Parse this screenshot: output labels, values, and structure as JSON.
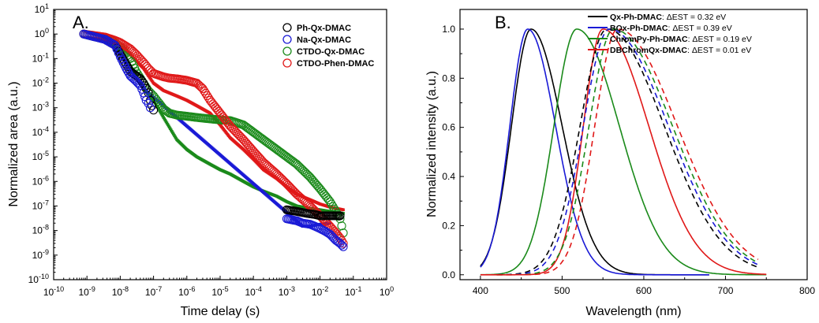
{
  "chart_data": [
    {
      "type": "scatter",
      "panel_label": "A.",
      "xlabel": "Time delay (s)",
      "ylabel": "Normalized area (a.u.)",
      "xscale": "log",
      "yscale": "log",
      "xlim": [
        1e-10,
        1
      ],
      "ylim": [
        1e-10,
        10
      ],
      "x_tick_labels": [
        "10-10",
        "10-9",
        "10-8",
        "10-7",
        "10-6",
        "10-5",
        "10-4",
        "10-3",
        "10-2",
        "10-1",
        "100"
      ],
      "y_tick_labels": [
        "10-10",
        "10-9",
        "10-8",
        "10-7",
        "10-6",
        "10-5",
        "10-4",
        "10-3",
        "10-2",
        "10-1",
        "100",
        "101"
      ],
      "legend_position": "top-right",
      "series": [
        {
          "name": "Ph-Qx-DMAC",
          "color": "#000000",
          "marker": "open-circle",
          "prompt": {
            "x": [
              8e-10,
              3.5e-09,
              7e-09,
              1e-08,
              1.5e-08,
              2e-08,
              3e-08,
              4e-08,
              5e-08,
              6e-08,
              7e-08,
              8e-08,
              9e-08,
              1e-07
            ],
            "y": [
              1,
              0.6,
              0.35,
              0.15,
              0.06,
              0.03,
              0.02,
              0.015,
              0.01,
              0.006,
              0.004,
              0.002,
              0.0012,
              0.0008
            ]
          },
          "delayed": {
            "x": [
              0.001,
              0.002,
              0.004,
              0.007,
              0.01,
              0.02,
              0.03,
              0.04
            ],
            "y": [
              7e-08,
              6e-08,
              5e-08,
              4.5e-08,
              4e-08,
              4e-08,
              4e-08,
              4e-08
            ]
          }
        },
        {
          "name": "Na-Qx-DMAC",
          "color": "#1a1ad6",
          "marker": "open-circle",
          "prompt": {
            "x": [
              8e-10,
              3.5e-09,
              7e-09,
              1e-08,
              1.5e-08,
              2e-08,
              3e-08,
              4e-08,
              5e-08,
              6e-08,
              7e-08,
              8e-08
            ],
            "y": [
              1,
              0.6,
              0.35,
              0.12,
              0.04,
              0.02,
              0.012,
              0.008,
              0.004,
              0.002,
              0.0015,
              0.001
            ]
          },
          "delayed": {
            "x": [
              0.001,
              0.002,
              0.003,
              0.005,
              0.007,
              0.01,
              0.015,
              0.02,
              0.03,
              0.04,
              0.05
            ],
            "y": [
              3e-08,
              2.5e-08,
              2e-08,
              1.8e-08,
              1.5e-08,
              1.2e-08,
              9e-09,
              7e-09,
              4e-09,
              3e-09,
              2.2e-09
            ]
          }
        },
        {
          "name": "CTDO-Qx-DMAC",
          "color": "#1a8a1a",
          "marker": "open-circle",
          "x": [
            3.5e-09,
            6e-09,
            1e-08,
            2e-08,
            3e-08,
            5e-08,
            7e-08,
            1e-07,
            1.5e-07,
            2e-07,
            3e-07,
            5e-07,
            1e-06,
            2e-06,
            5e-06,
            1e-05,
            2e-05,
            5e-05,
            0.0001,
            0.0002,
            0.0005,
            0.001,
            0.002,
            0.005,
            0.01,
            0.02,
            0.03,
            0.04,
            0.05
          ],
          "y": [
            0.7,
            0.5,
            0.3,
            0.1,
            0.03,
            0.01,
            0.005,
            0.003,
            0.0015,
            0.0009,
            0.0006,
            0.0005,
            0.00045,
            0.0004,
            0.00035,
            0.00032,
            0.0003,
            0.0002,
            0.0001,
            5e-05,
            2e-05,
            1e-05,
            5e-06,
            1.5e-06,
            5e-07,
            1.5e-07,
            6e-08,
            3e-08,
            8e-09
          ]
        },
        {
          "name": "CTDO-Phen-DMAC",
          "color": "#e01818",
          "marker": "open-circle",
          "x": [
            8e-10,
            3.5e-09,
            7e-09,
            1e-08,
            2e-08,
            3e-08,
            5e-08,
            7e-08,
            1e-07,
            2e-07,
            3e-07,
            5e-07,
            1e-06,
            2e-06,
            3e-06,
            5e-06,
            1e-05,
            2e-05,
            5e-05,
            0.0001,
            0.0002,
            0.0005,
            0.001,
            0.002,
            0.005,
            0.01,
            0.02,
            0.03,
            0.04,
            0.05
          ],
          "y": [
            1,
            0.75,
            0.55,
            0.45,
            0.25,
            0.15,
            0.07,
            0.04,
            0.025,
            0.018,
            0.016,
            0.015,
            0.013,
            0.01,
            0.006,
            0.002,
            0.0006,
            0.00018,
            5e-05,
            1.7e-05,
            6e-06,
            2e-06,
            8e-07,
            3e-07,
            1e-07,
            4e-08,
            1.5e-08,
            8e-09,
            5e-09,
            3e-09
          ]
        },
        {
          "name": "",
          "color": "#1a8a1a",
          "marker": "filled-square",
          "x": [
            3e-09,
            5e-09,
            1e-08,
            2e-08,
            3e-08,
            5e-08,
            1e-07,
            2e-07,
            5e-07,
            1e-06,
            2e-06,
            5e-06,
            1e-05,
            2e-05,
            5e-05,
            0.0001,
            0.0002,
            0.0005,
            0.001,
            0.002,
            0.005,
            0.01,
            0.02,
            0.05
          ],
          "y": [
            0.6,
            0.4,
            0.2,
            0.05,
            0.02,
            0.006,
            0.002,
            0.0004,
            5e-05,
            2e-05,
            1e-05,
            5e-06,
            3e-06,
            2e-06,
            1e-06,
            6e-07,
            4e-07,
            2.5e-07,
            1.5e-07,
            1e-07,
            8e-08,
            7e-08,
            6e-08,
            5e-08
          ]
        },
        {
          "name": "",
          "color": "#e01818",
          "marker": "filled-square",
          "x": [
            3e-09,
            5e-09,
            1e-08,
            2e-08,
            3e-08,
            5e-08,
            7e-08,
            1e-07,
            2e-07,
            5e-07,
            1e-06,
            2e-06,
            5e-06,
            1e-05,
            2e-05,
            5e-05,
            0.0001,
            0.0002,
            0.0005,
            0.001,
            0.002,
            0.005,
            0.01,
            0.02,
            0.05
          ],
          "y": [
            0.7,
            0.5,
            0.3,
            0.15,
            0.08,
            0.04,
            0.02,
            0.01,
            0.005,
            0.003,
            0.002,
            0.0012,
            0.0006,
            0.0002,
            6e-05,
            2e-05,
            8e-06,
            3e-06,
            1.3e-06,
            6e-07,
            3e-07,
            1.8e-07,
            1.2e-07,
            9e-08,
            7e-08
          ]
        },
        {
          "name": "",
          "color": "#1a1ad6",
          "marker": "filled-square",
          "x": [
            3e-09,
            5e-09,
            1e-08,
            2e-08,
            3e-08,
            5e-08,
            0.003,
            0.005,
            0.01,
            0.02
          ],
          "y": [
            0.6,
            0.4,
            0.15,
            0.04,
            0.015,
            0.006,
            1.5e-08,
            1.5e-08,
            1.8e-08,
            2e-08
          ]
        }
      ]
    },
    {
      "type": "line",
      "panel_label": "B.",
      "xlabel": "Wavelength (nm)",
      "ylabel": "Normalized intensity (a.u.)",
      "xlim": [
        375,
        800
      ],
      "ylim": [
        -0.02,
        1.08
      ],
      "x_ticks": [
        400,
        500,
        600,
        700,
        800
      ],
      "y_ticks": [
        0.0,
        0.2,
        0.4,
        0.6,
        0.8,
        1.0
      ],
      "x_tick_labels": [
        "400",
        "500",
        "600",
        "700",
        "800"
      ],
      "y_tick_labels": [
        "0.0",
        "0.2",
        "0.4",
        "0.6",
        "0.8",
        "1.0"
      ],
      "legend_position": "top-right",
      "legend": [
        {
          "name": "Qx-Ph-DMAC",
          "dest_label": ": ΔEST = 0.32 eV",
          "color": "#000000"
        },
        {
          "name": "BQx-Ph-DMAC",
          "dest_label": ": ΔEST = 0.39 eV",
          "color": "#1a1ad6"
        },
        {
          "name": "ChromPy-Ph-DMAC",
          "dest_label": ": ΔEST = 0.19 eV",
          "color": "#1a8a1a"
        },
        {
          "name": "DBChromQx-DMAC",
          "dest_label": ": ΔEST = 0.01 eV",
          "color": "#e01818"
        }
      ],
      "series": [
        {
          "name": "Qx-Ph-DMAC",
          "color": "#000000",
          "style": "solid",
          "peak_nm": 462,
          "sigma_left_nm": 24,
          "sigma_right_nm": 38,
          "range_nm": [
            400,
            680
          ]
        },
        {
          "name": "BQx-Ph-DMAC",
          "color": "#1a1ad6",
          "style": "solid",
          "peak_nm": 458,
          "sigma_left_nm": 22,
          "sigma_right_nm": 34,
          "range_nm": [
            400,
            680
          ]
        },
        {
          "name": "ChromPy-Ph-DMAC",
          "color": "#1a8a1a",
          "style": "solid",
          "peak_nm": 518,
          "sigma_left_nm": 28,
          "sigma_right_nm": 52,
          "range_nm": [
            400,
            750
          ]
        },
        {
          "name": "DBChromQx-DMAC",
          "color": "#e01818",
          "style": "solid",
          "peak_nm": 550,
          "sigma_left_nm": 24,
          "sigma_right_nm": 56,
          "range_nm": [
            400,
            750
          ]
        },
        {
          "name": "Qx-Ph-DMAC",
          "color": "#000000",
          "style": "dashed",
          "peak_nm": 555,
          "sigma_left_nm": 33,
          "sigma_right_nm": 70,
          "range_nm": [
            420,
            740
          ]
        },
        {
          "name": "BQx-Ph-DMAC",
          "color": "#1a1ad6",
          "style": "dashed",
          "peak_nm": 558,
          "sigma_left_nm": 32,
          "sigma_right_nm": 72,
          "range_nm": [
            420,
            740
          ]
        },
        {
          "name": "ChromPy-Ph-DMAC",
          "color": "#1a8a1a",
          "style": "dashed",
          "peak_nm": 563,
          "sigma_left_nm": 30,
          "sigma_right_nm": 72,
          "range_nm": [
            420,
            740
          ]
        },
        {
          "name": "DBChromQx-DMAC",
          "color": "#e01818",
          "style": "dashed",
          "peak_nm": 568,
          "sigma_left_nm": 28,
          "sigma_right_nm": 73,
          "range_nm": [
            420,
            740
          ]
        }
      ]
    }
  ]
}
